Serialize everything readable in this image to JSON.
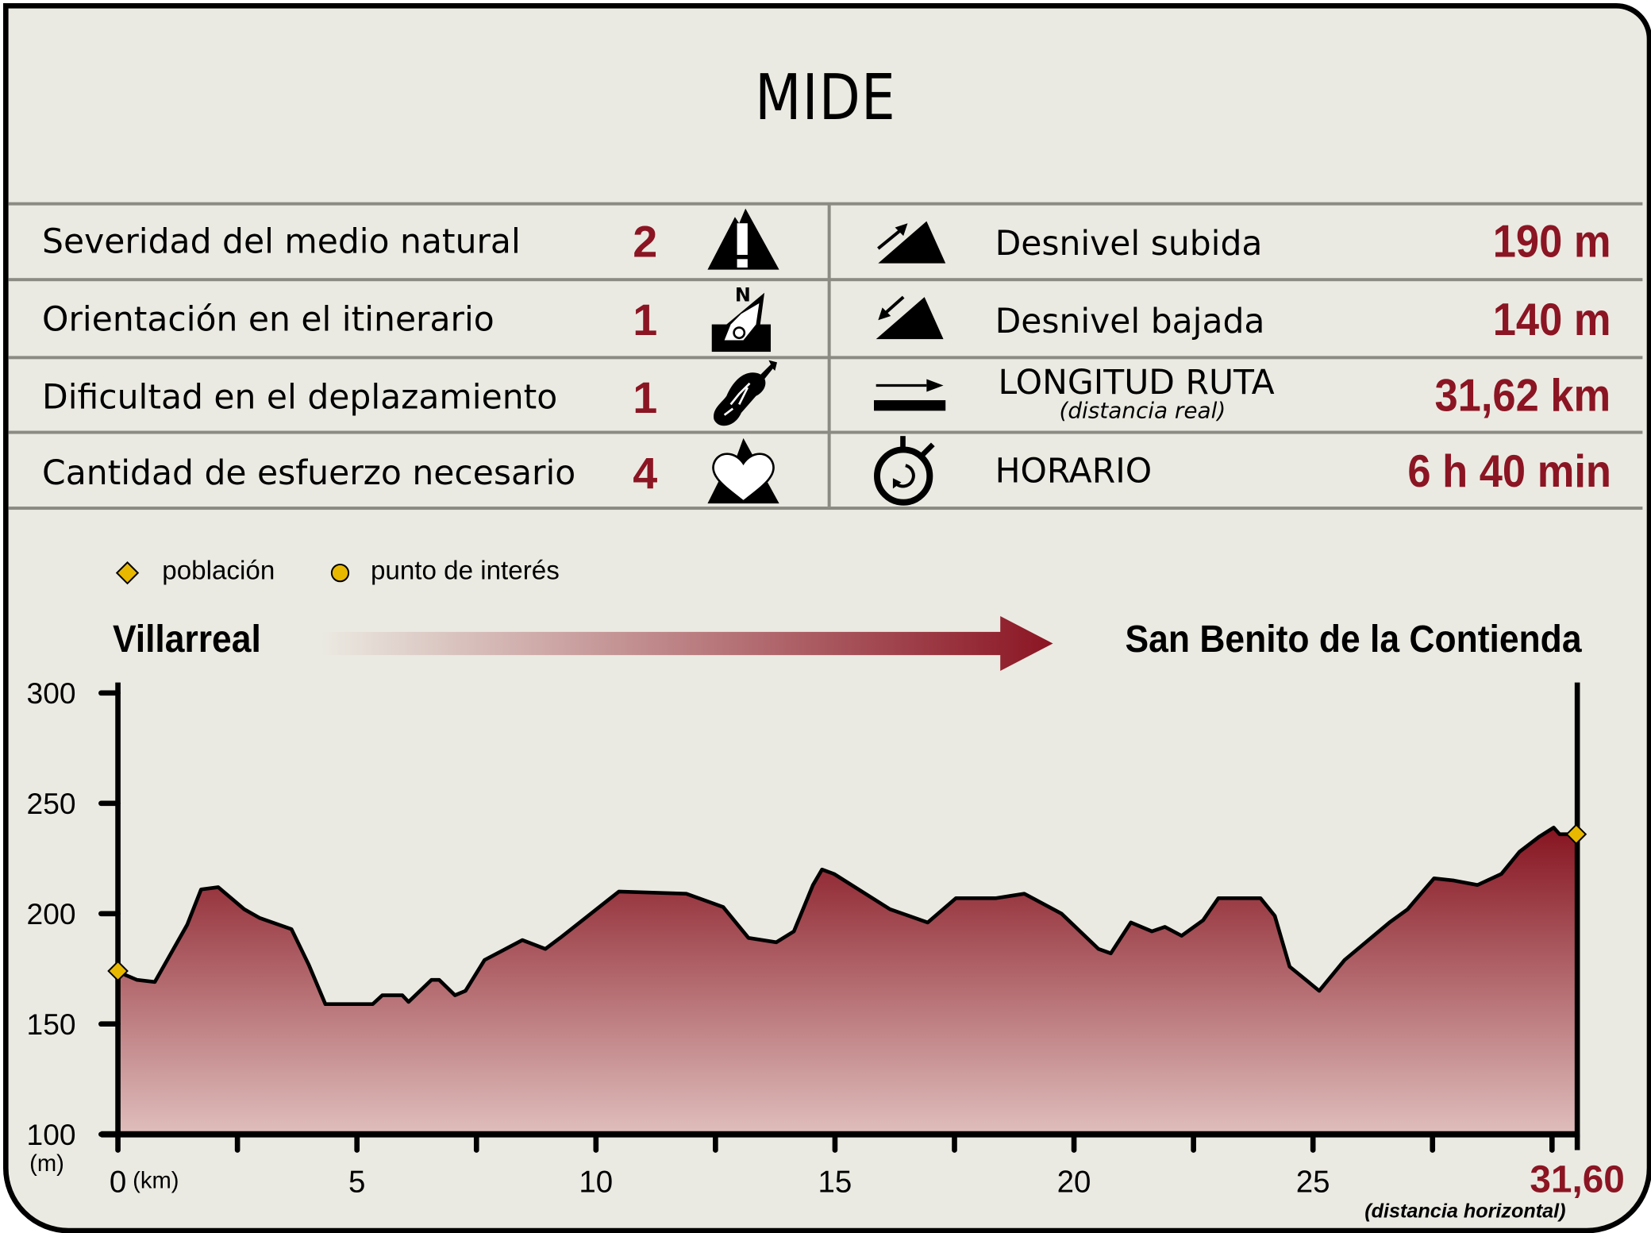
{
  "title": "MIDE",
  "left_rows": [
    {
      "label": "Severidad del medio natural",
      "value": "2",
      "icon": "warning-mountain-icon"
    },
    {
      "label": "Orientación en el itinerario",
      "value": "1",
      "icon": "compass-orientation-icon"
    },
    {
      "label": "Dificultad en el deplazamiento",
      "value": "1",
      "icon": "boot-sole-icon"
    },
    {
      "label": "Cantidad de esfuerzo necesario",
      "value": "4",
      "icon": "heart-mountain-icon"
    }
  ],
  "right_rows": [
    {
      "label": "Desnivel subida",
      "value": "190 m",
      "icon": "ascent-icon"
    },
    {
      "label": "Desnivel bajada",
      "value": "140 m",
      "icon": "descent-icon"
    },
    {
      "label": "LONGITUD RUTA",
      "sublabel": "(distancia real)",
      "value": "31,62 km",
      "icon": "distance-icon"
    },
    {
      "label": "HORARIO",
      "value": "6 h 40 min",
      "icon": "stopwatch-icon"
    }
  ],
  "legend": {
    "town": "población",
    "poi": "punto de interés"
  },
  "start": "Villarreal",
  "end": "San Benito de la Contienda",
  "colors": {
    "accent": "#8b1523",
    "background": "#ebeae2",
    "marker": "#e8b800",
    "grid": "#8b8b83"
  },
  "chart_data": {
    "type": "area",
    "xlabel": "(km)",
    "ylabel": "(m)",
    "x_end_label": "31,60",
    "x_end_note": "(distancia horizontal)",
    "xlim": [
      0,
      31.6
    ],
    "ylim": [
      100,
      300
    ],
    "xticks": [
      "0",
      "5",
      "10",
      "15",
      "20",
      "25"
    ],
    "xtick_values": [
      0,
      5,
      10,
      15,
      20,
      25
    ],
    "minor_xticks": [
      2.5,
      7.5,
      12.5,
      17.5,
      22.5,
      27.5,
      30
    ],
    "yticks": [
      "300",
      "250",
      "200",
      "150",
      "100"
    ],
    "ytick_values": [
      300,
      250,
      200,
      150,
      100
    ],
    "grid": false,
    "x": [
      0,
      0.18,
      0.4,
      0.77,
      1.45,
      1.74,
      2.1,
      2.64,
      2.97,
      3.63,
      3.99,
      4.34,
      5.33,
      5.53,
      5.95,
      6.08,
      6.56,
      6.72,
      7.05,
      7.27,
      7.67,
      8.46,
      8.94,
      9.25,
      10.48,
      11.89,
      12.66,
      13.19,
      13.77,
      14.14,
      14.54,
      14.73,
      14.98,
      16.15,
      16.94,
      17.53,
      18.37,
      18.96,
      19.74,
      20.51,
      20.77,
      21.19,
      21.63,
      21.9,
      22.25,
      22.7,
      23.02,
      23.9,
      24.2,
      24.51,
      25.13,
      25.66,
      26.6,
      26.98,
      27.53,
      27.95,
      28.44,
      28.94,
      29.32,
      29.74,
      30.11,
      30.5,
      31.6
    ],
    "y": [
      174,
      172,
      170,
      169,
      195,
      211,
      212,
      202,
      198,
      193,
      177,
      159,
      159,
      163,
      163,
      160,
      170,
      170,
      163,
      165,
      179,
      188,
      184,
      189,
      210,
      209,
      203,
      189,
      187,
      192,
      213,
      220,
      218,
      202,
      196,
      207,
      207,
      209,
      200,
      184,
      182,
      196,
      192,
      194,
      190,
      197,
      207,
      207,
      199,
      176,
      165,
      179,
      196,
      202,
      216,
      215,
      213,
      218,
      228,
      235,
      239,
      236,
      236
    ],
    "markers": [
      {
        "type": "población",
        "x": 0,
        "y": 174
      },
      {
        "type": "población",
        "x": 31.6,
        "y": 236
      }
    ]
  }
}
